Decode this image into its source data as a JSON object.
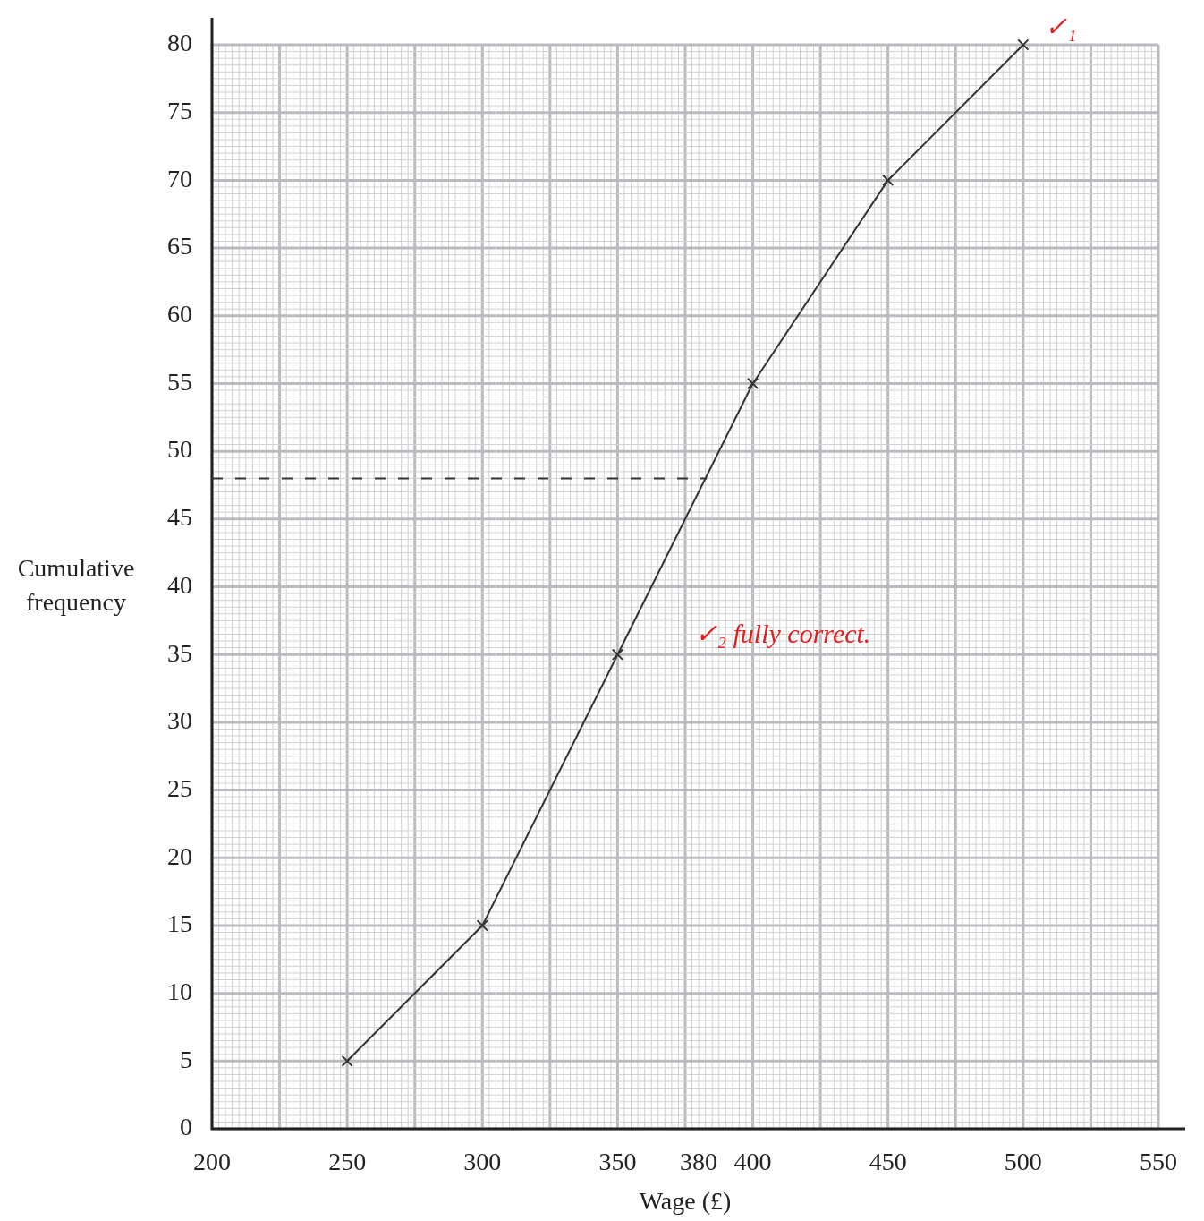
{
  "chart_data": {
    "type": "line",
    "xlabel": "Wage (£)",
    "ylabel": "Cumulative frequency",
    "xlim": [
      200,
      550
    ],
    "ylim": [
      0,
      80
    ],
    "xticks": [
      200,
      250,
      300,
      350,
      400,
      450,
      500,
      550,
      {
        "value": 380,
        "label": "380"
      }
    ],
    "yticks": [
      0,
      5,
      10,
      15,
      20,
      25,
      30,
      35,
      40,
      45,
      50,
      55,
      60,
      65,
      70,
      75,
      80
    ],
    "grid": true,
    "legend": false,
    "series": [
      {
        "x": [
          250,
          300,
          350,
          400,
          450,
          500
        ],
        "values": [
          5,
          15,
          35,
          55,
          70,
          80
        ],
        "color": "#333333",
        "marker": "cross",
        "line_style": "solid"
      },
      {
        "x": [
          200,
          383
        ],
        "values": [
          48,
          48
        ],
        "color": "#333333",
        "marker": "none",
        "line_style": "dashed"
      }
    ],
    "annotations": [
      "✓₁",
      "✓₂ fully correct."
    ]
  }
}
